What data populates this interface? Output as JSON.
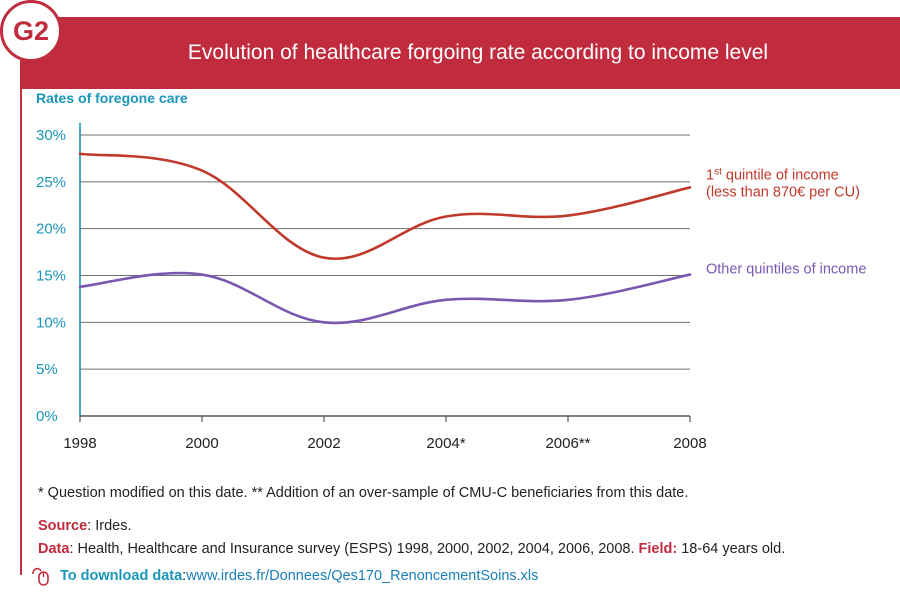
{
  "badge": "G2",
  "title": "Evolution of healthcare forgoing rate according to income level",
  "chart_data": {
    "type": "line",
    "title": "Evolution of healthcare forgoing rate according to income level",
    "ylabel": "Rates of foregone care",
    "xlabel": "",
    "x": [
      1998,
      2000,
      2002,
      2004,
      2006,
      2008
    ],
    "x_tick_labels": [
      "1998",
      "2000",
      "2002",
      "2004*",
      "2006**",
      "2008"
    ],
    "y_ticks": [
      0,
      5,
      10,
      15,
      20,
      25,
      30
    ],
    "y_tick_labels": [
      "0%",
      "5%",
      "10%",
      "15%",
      "20%",
      "25%",
      "30%"
    ],
    "ylim": [
      0,
      30
    ],
    "xlim": [
      1998,
      2008
    ],
    "grid": true,
    "series": [
      {
        "name_line1_sup": "st",
        "name_line1_prefix": "1",
        "name_line1_rest": " quintile of income",
        "name_line2": "(less than 870€ per CU)",
        "color": "#c0392b",
        "values": [
          28.0,
          26.2,
          16.9,
          21.3,
          21.4,
          24.4
        ]
      },
      {
        "name": "Other quintiles of income",
        "color": "#7b57b0",
        "values": [
          13.8,
          15.1,
          10.0,
          12.4,
          12.4,
          15.1
        ]
      }
    ]
  },
  "footnote": "* Question modified on this date. ** Addition of an over-sample of CMU-C beneficiaries from this date.",
  "source_label": "Source",
  "source_value": ": Irdes.",
  "data_label": "Data",
  "data_value": ": Health, Healthcare and Insurance survey (ESPS) 1998, 2000, 2002, 2004, 2006, 2008.",
  "field_label": "Field:",
  "field_value": " 18-64 years old.",
  "download_label": "To download data",
  "download_sep": ": ",
  "download_url": "www.irdes.fr/Donnees/Qes170_RenoncementSoins.xls",
  "icons": {
    "download": "mouse-icon"
  },
  "colors": {
    "banner": "#c02c3e",
    "accent": "#1a96b8"
  }
}
